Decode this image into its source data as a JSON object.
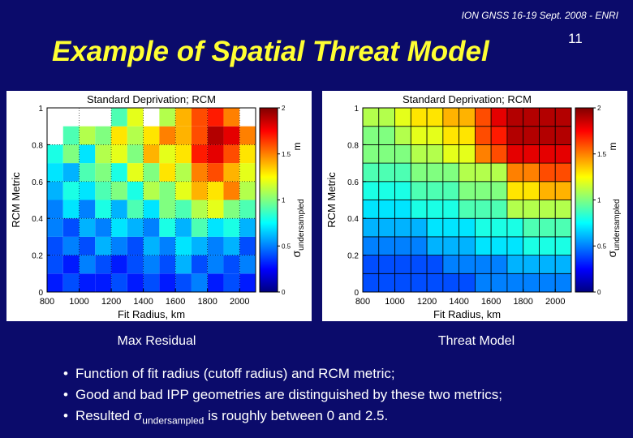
{
  "header": "ION GNSS 16-19 Sept. 2008 - ENRI",
  "title": "Example of Spatial Threat Model",
  "page_number": "11",
  "captions": [
    "Max Residual",
    "Threat Model"
  ],
  "bullets": [
    "Function of fit radius (cutoff radius) and RCM metric;",
    "Good and bad IPP geometries are distinguished by these two metrics;",
    {
      "text": "Resulted",
      "symbol": "σ",
      "subscript": "undersampled",
      "rest": "is roughly between 0 and 2.5."
    }
  ],
  "chart_data": [
    {
      "type": "heatmap",
      "title": "Standard Deprivation; RCM",
      "xlabel": "Fit Radius, km",
      "ylabel": "RCM Metric",
      "colorbar_symbol": "σ",
      "colorbar_subscript": "undersampled",
      "colorbar_unit": "m",
      "colormap": "jet",
      "grid": true,
      "cell_borders": false,
      "x_bins": [
        800,
        900,
        1000,
        1100,
        1200,
        1300,
        1400,
        1500,
        1600,
        1700,
        1800,
        1900,
        2000,
        2100
      ],
      "y_bins": [
        0,
        0.1,
        0.2,
        0.3,
        0.4,
        0.5,
        0.6,
        0.7,
        0.8,
        0.9,
        1
      ],
      "xlim": [
        800,
        2100
      ],
      "ylim": [
        0,
        1
      ],
      "xticks": [
        800,
        1000,
        1200,
        1400,
        1600,
        1800,
        2000
      ],
      "yticks": [
        0,
        0.2,
        0.4,
        0.6,
        0.8,
        1
      ],
      "clim": [
        0,
        2
      ],
      "cticks": [
        0,
        0.5,
        1,
        1.5,
        2
      ],
      "z": [
        [
          0.3,
          0.4,
          0.3,
          0.3,
          0.4,
          0.3,
          0.4,
          0.3,
          0.4,
          0.5,
          0.3,
          0.4,
          0.3
        ],
        [
          0.4,
          0.3,
          0.5,
          0.4,
          0.3,
          0.4,
          0.5,
          0.4,
          0.6,
          0.4,
          0.5,
          0.4,
          0.5
        ],
        [
          0.4,
          0.5,
          0.4,
          0.6,
          0.5,
          0.4,
          0.6,
          0.5,
          0.7,
          0.6,
          0.5,
          0.6,
          0.4
        ],
        [
          0.5,
          0.4,
          0.6,
          0.5,
          0.7,
          0.6,
          0.5,
          0.8,
          0.6,
          0.9,
          0.7,
          0.8,
          0.6
        ],
        [
          0.5,
          0.7,
          0.5,
          0.8,
          0.6,
          0.9,
          0.7,
          1.0,
          0.9,
          1.1,
          1.2,
          1.0,
          0.9
        ],
        [
          0.6,
          0.8,
          0.7,
          0.9,
          1.0,
          0.8,
          1.1,
          1.0,
          1.2,
          1.4,
          1.3,
          1.5,
          1.1
        ],
        [
          0.7,
          0.6,
          0.9,
          1.0,
          0.8,
          1.2,
          1.0,
          1.3,
          1.1,
          1.5,
          1.6,
          1.4,
          1.2
        ],
        [
          0.8,
          1.0,
          0.7,
          1.1,
          1.2,
          1.0,
          1.4,
          1.2,
          1.3,
          1.7,
          1.8,
          1.6,
          1.3
        ],
        [
          null,
          0.9,
          1.1,
          1.0,
          1.3,
          1.1,
          1.3,
          1.5,
          1.4,
          1.6,
          1.9,
          1.8,
          1.5
        ],
        [
          null,
          null,
          null,
          null,
          0.9,
          1.2,
          null,
          1.1,
          1.4,
          1.6,
          1.7,
          1.5,
          null
        ]
      ]
    },
    {
      "type": "heatmap",
      "title": "Standard Deprivation; RCM",
      "xlabel": "Fit Radius, km",
      "ylabel": "RCM Metric",
      "colorbar_symbol": "σ",
      "colorbar_subscript": "undersampled",
      "colorbar_unit": "m",
      "colormap": "jet",
      "grid": false,
      "cell_borders": true,
      "x_bins": [
        800,
        900,
        1000,
        1100,
        1200,
        1300,
        1400,
        1500,
        1600,
        1700,
        1800,
        1900,
        2000,
        2100
      ],
      "y_bins": [
        0,
        0.1,
        0.2,
        0.3,
        0.4,
        0.5,
        0.6,
        0.7,
        0.8,
        0.9,
        1
      ],
      "xlim": [
        800,
        2100
      ],
      "ylim": [
        0,
        1
      ],
      "xticks": [
        800,
        1000,
        1200,
        1400,
        1600,
        1800,
        2000
      ],
      "yticks": [
        0,
        0.2,
        0.4,
        0.6,
        0.8,
        1
      ],
      "clim": [
        0,
        2
      ],
      "cticks": [
        0,
        0.5,
        1,
        1.5,
        2
      ],
      "z": [
        [
          0.4,
          0.4,
          0.4,
          0.4,
          0.4,
          0.4,
          0.4,
          0.5,
          0.5,
          0.5,
          0.5,
          0.5,
          0.5
        ],
        [
          0.4,
          0.4,
          0.4,
          0.4,
          0.4,
          0.5,
          0.5,
          0.5,
          0.5,
          0.6,
          0.6,
          0.6,
          0.6
        ],
        [
          0.5,
          0.5,
          0.5,
          0.5,
          0.6,
          0.6,
          0.6,
          0.7,
          0.7,
          0.7,
          0.8,
          0.8,
          0.8
        ],
        [
          0.6,
          0.6,
          0.6,
          0.6,
          0.7,
          0.7,
          0.7,
          0.8,
          0.8,
          0.8,
          0.9,
          0.9,
          0.9
        ],
        [
          0.7,
          0.7,
          0.7,
          0.8,
          0.8,
          0.8,
          0.9,
          0.9,
          0.9,
          1.1,
          1.1,
          1.1,
          1.1
        ],
        [
          0.8,
          0.8,
          0.8,
          0.9,
          0.9,
          0.9,
          1.0,
          1.0,
          1.0,
          1.3,
          1.3,
          1.4,
          1.4
        ],
        [
          0.9,
          0.9,
          0.9,
          1.0,
          1.0,
          1.0,
          1.1,
          1.1,
          1.1,
          1.5,
          1.5,
          1.6,
          1.6
        ],
        [
          1.0,
          1.0,
          1.0,
          1.1,
          1.1,
          1.2,
          1.2,
          1.5,
          1.6,
          1.8,
          1.8,
          1.8,
          1.8
        ],
        [
          1.0,
          1.0,
          1.1,
          1.2,
          1.2,
          1.3,
          1.3,
          1.6,
          1.7,
          1.9,
          1.9,
          1.9,
          1.9
        ],
        [
          1.1,
          1.1,
          1.2,
          1.3,
          1.3,
          1.4,
          1.4,
          1.6,
          1.8,
          1.9,
          1.9,
          1.9,
          1.9
        ]
      ]
    }
  ]
}
